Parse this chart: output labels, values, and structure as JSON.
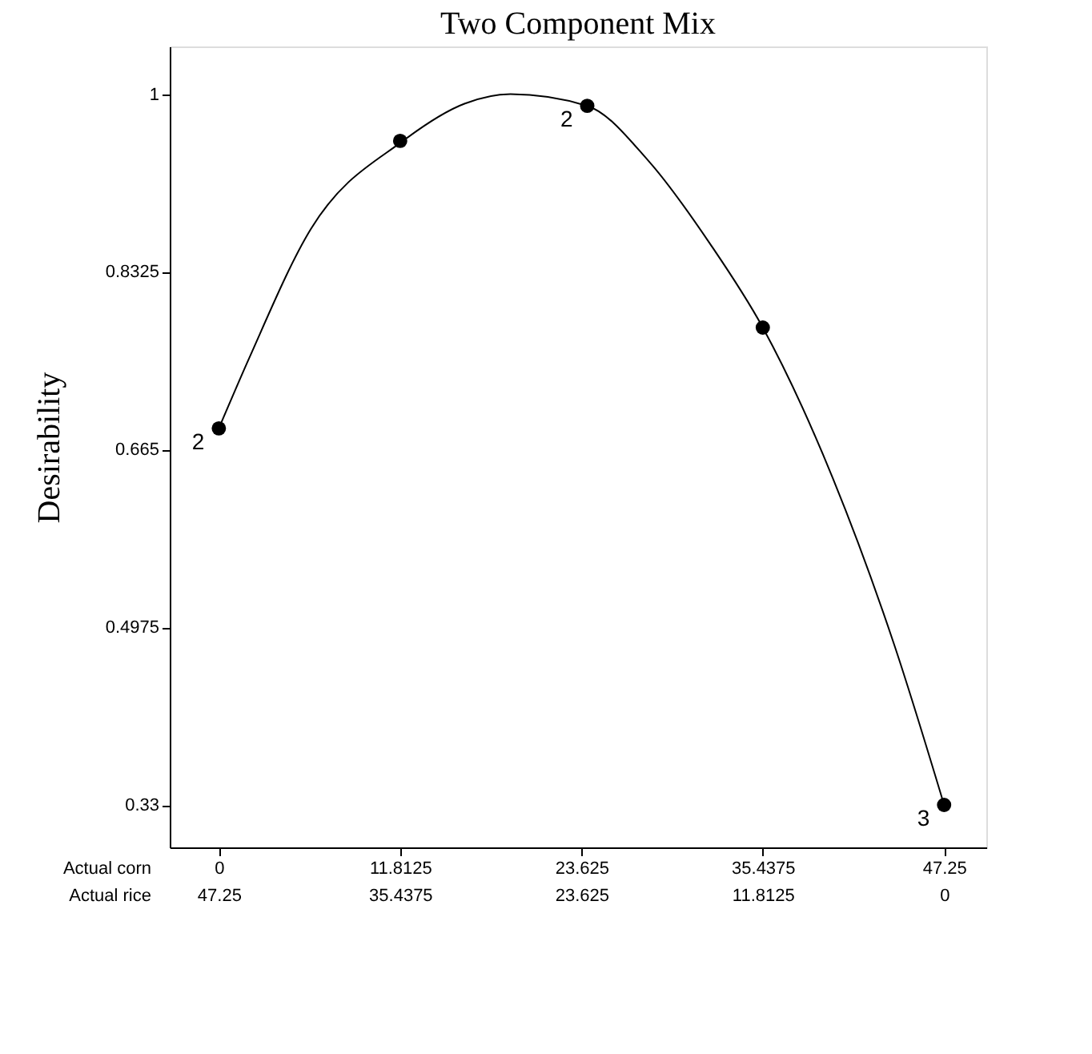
{
  "chart_data": {
    "type": "line",
    "title": "Two Component Mix",
    "ylabel": "Desirability",
    "xlabel": "Actual corn",
    "x2label": "Actual rice",
    "xlim": [
      -3.2,
      50.0
    ],
    "xticks": [
      0,
      11.8125,
      23.625,
      35.4375,
      47.25
    ],
    "x2lim": [
      50.45,
      -2.75
    ],
    "x2ticks": [
      47.25,
      35.4375,
      23.625,
      11.8125,
      0
    ],
    "ylim": [
      0.29,
      1.045
    ],
    "yticks": [
      0.33,
      0.4975,
      0.665,
      0.8325,
      1
    ],
    "grid": false,
    "series": [
      {
        "type": "line",
        "color": "#000000",
        "marker": "none",
        "line_style": "solid",
        "x": [
          0,
          2.0,
          6.0,
          12.0,
          16.0,
          19.0,
          24.0,
          28.0,
          32.0,
          35.4375,
          40.0,
          44.0,
          47.25
        ],
        "values": [
          0.685,
          0.752,
          0.873,
          0.956,
          0.991,
          1.0,
          0.989,
          0.937,
          0.859,
          0.78,
          0.638,
          0.481,
          0.33
        ]
      },
      {
        "type": "scatter",
        "color": "#000000",
        "marker": "circle",
        "x": [
          0,
          11.8125,
          24.0,
          35.4375,
          47.25
        ],
        "values": [
          0.685,
          0.956,
          0.989,
          0.78,
          0.33
        ]
      }
    ],
    "annotations": [
      {
        "text": "2",
        "x": 0,
        "y": 0.685
      },
      {
        "text": "2",
        "x": 24.0,
        "y": 0.989
      },
      {
        "text": "3",
        "x": 47.25,
        "y": 0.33
      }
    ]
  }
}
